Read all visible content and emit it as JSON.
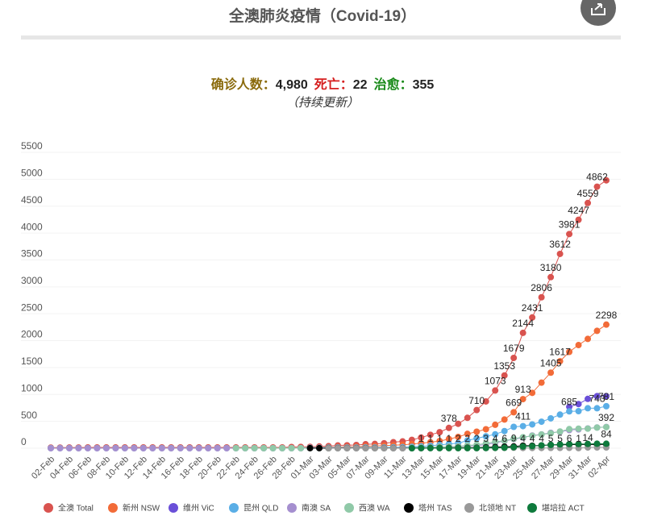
{
  "header": {
    "title": "全澳肺炎疫情（Covid-19）"
  },
  "summary": {
    "confirmed_label": "确诊人数：",
    "confirmed": "4,980",
    "deaths_label": "死亡：",
    "deaths": "22",
    "recovered_label": "治愈：",
    "recovered": "355",
    "note": "（持续更新）"
  },
  "chart_data": {
    "type": "line",
    "categories": [
      "02-Feb",
      null,
      "04-Feb",
      null,
      "06-Feb",
      null,
      "08-Feb",
      null,
      "10-Feb",
      null,
      "12-Feb",
      null,
      "14-Feb",
      null,
      "16-Feb",
      null,
      "18-Feb",
      null,
      "20-Feb",
      null,
      "22-Feb",
      null,
      "24-Feb",
      null,
      "26-Feb",
      null,
      "28-Feb",
      null,
      "01-Mar",
      null,
      "03-Mar",
      null,
      "05-Mar",
      null,
      "07-Mar",
      null,
      "09-Mar",
      null,
      "11-Mar",
      null,
      "13-Mar",
      null,
      "15-Mar",
      null,
      "17-Mar",
      null,
      "19-Mar",
      null,
      "21-Mar",
      null,
      "23-Mar",
      null,
      "25-Mar",
      null,
      "27-Mar",
      null,
      "29-Mar",
      null,
      "31-Mar",
      null,
      "02-Apr"
    ],
    "ylim": [
      0,
      5500
    ],
    "yticks": [
      0,
      500,
      1000,
      1500,
      2000,
      2500,
      3000,
      3500,
      4000,
      4500,
      5000,
      5500
    ],
    "grid": true,
    "legend": "bottom",
    "series": [
      {
        "name": "全澳 Total",
        "color": "#d9534f",
        "values": [
          12,
          12,
          13,
          14,
          15,
          15,
          15,
          15,
          15,
          15,
          15,
          15,
          15,
          15,
          15,
          15,
          15,
          15,
          15,
          15,
          15,
          15,
          15,
          15,
          15,
          15,
          23,
          25,
          26,
          33,
          39,
          52,
          55,
          60,
          74,
          80,
          92,
          112,
          127,
          156,
          198,
          250,
          298,
          378,
          454,
          565,
          710,
          870,
          1073,
          1353,
          1679,
          2144,
          2431,
          2806,
          3180,
          3612,
          3981,
          4247,
          4559,
          4862,
          4980
        ],
        "value_labels": [
          null,
          null,
          null,
          null,
          null,
          null,
          null,
          null,
          null,
          null,
          null,
          null,
          null,
          null,
          null,
          null,
          null,
          null,
          null,
          null,
          null,
          null,
          null,
          null,
          null,
          null,
          null,
          null,
          null,
          null,
          null,
          null,
          null,
          null,
          null,
          null,
          null,
          null,
          null,
          null,
          null,
          null,
          null,
          "378",
          null,
          null,
          "710",
          null,
          "1073",
          "1353",
          "1679",
          "2144",
          "2431",
          "2806",
          "3180",
          "3612",
          "3981",
          "4247",
          "4559",
          "4862",
          null
        ]
      },
      {
        "name": "新州 NSW",
        "color": "#f26b38",
        "values": [
          4,
          4,
          4,
          4,
          4,
          4,
          4,
          4,
          4,
          4,
          4,
          4,
          4,
          4,
          4,
          4,
          4,
          4,
          4,
          4,
          4,
          4,
          4,
          4,
          4,
          4,
          4,
          4,
          6,
          9,
          15,
          22,
          25,
          28,
          38,
          40,
          48,
          55,
          65,
          78,
          92,
          112,
          134,
          171,
          210,
          267,
          307,
          353,
          436,
          533,
          669,
          913,
          1029,
          1219,
          1405,
          1617,
          1791,
          1918,
          2032,
          2182,
          2298
        ],
        "value_labels": [
          null,
          null,
          null,
          null,
          null,
          null,
          null,
          null,
          null,
          null,
          null,
          null,
          null,
          null,
          null,
          null,
          null,
          null,
          null,
          null,
          null,
          null,
          null,
          null,
          null,
          null,
          null,
          null,
          null,
          null,
          null,
          null,
          null,
          null,
          null,
          null,
          null,
          null,
          null,
          null,
          null,
          null,
          null,
          null,
          null,
          null,
          null,
          null,
          null,
          null,
          "669",
          "913",
          null,
          null,
          "1405",
          "1617",
          null,
          null,
          null,
          null,
          "2298"
        ]
      },
      {
        "name": "维州 ViC",
        "color": "#6a4fd8",
        "values": [
          null,
          null,
          null,
          null,
          null,
          null,
          null,
          null,
          null,
          null,
          null,
          null,
          null,
          null,
          null,
          null,
          null,
          null,
          null,
          null,
          null,
          null,
          null,
          null,
          null,
          null,
          null,
          null,
          null,
          null,
          null,
          null,
          null,
          null,
          null,
          null,
          null,
          null,
          null,
          null,
          null,
          null,
          null,
          null,
          null,
          null,
          null,
          null,
          null,
          null,
          null,
          null,
          null,
          null,
          null,
          null,
          769,
          821,
          917,
          968,
          968
        ]
      },
      {
        "name": "昆州 QLD",
        "color": "#5aaee6",
        "values": [
          2,
          2,
          2,
          2,
          2,
          2,
          2,
          2,
          2,
          2,
          2,
          2,
          2,
          2,
          2,
          2,
          2,
          2,
          2,
          2,
          2,
          2,
          2,
          2,
          2,
          2,
          2,
          2,
          9,
          9,
          11,
          13,
          13,
          13,
          15,
          15,
          15,
          18,
          20,
          27,
          35,
          46,
          61,
          78,
          94,
          144,
          184,
          221,
          259,
          319,
          397,
          411,
          443,
          493,
          555,
          625,
          685,
          689,
          743,
          743,
          781
        ],
        "value_labels": [
          null,
          null,
          null,
          null,
          null,
          null,
          null,
          null,
          null,
          null,
          null,
          null,
          null,
          null,
          null,
          null,
          null,
          null,
          null,
          null,
          null,
          null,
          null,
          null,
          null,
          null,
          null,
          null,
          null,
          null,
          null,
          null,
          null,
          null,
          null,
          null,
          null,
          null,
          null,
          null,
          null,
          null,
          null,
          null,
          null,
          null,
          null,
          null,
          null,
          null,
          null,
          "411",
          null,
          null,
          null,
          null,
          "685",
          null,
          null,
          "743",
          "781"
        ]
      },
      {
        "name": "南澳 SA",
        "color": "#a58fcf",
        "values": [
          0,
          0,
          0,
          0,
          0,
          0,
          0,
          0,
          0,
          0,
          0,
          0,
          0,
          0,
          0,
          0,
          0,
          0,
          0,
          0,
          0,
          0,
          0,
          0,
          0,
          0,
          0,
          0,
          3,
          3,
          3,
          4,
          5,
          5,
          5,
          7,
          7,
          7,
          7,
          9,
          16,
          20,
          29,
          30,
          37,
          42,
          50,
          67,
          100,
          134,
          170,
          197,
          236,
          257,
          287,
          305,
          337,
          350,
          367,
          385,
          396
        ]
      },
      {
        "name": "西澳 WA",
        "color": "#90c9a8",
        "values": [
          null,
          null,
          null,
          null,
          null,
          null,
          null,
          null,
          null,
          null,
          null,
          null,
          null,
          null,
          null,
          null,
          null,
          null,
          null,
          null,
          0,
          0,
          0,
          0,
          0,
          0,
          0,
          0,
          1,
          2,
          2,
          2,
          3,
          3,
          3,
          3,
          3,
          4,
          4,
          9,
          14,
          17,
          28,
          31,
          35,
          52,
          64,
          90,
          120,
          140,
          175,
          205,
          231,
          255,
          278,
          311,
          355,
          364,
          364,
          384,
          392
        ],
        "value_labels": [
          null,
          null,
          null,
          null,
          null,
          null,
          null,
          null,
          null,
          null,
          null,
          null,
          null,
          null,
          null,
          null,
          null,
          null,
          null,
          null,
          null,
          null,
          null,
          null,
          null,
          null,
          null,
          null,
          null,
          null,
          null,
          null,
          null,
          null,
          null,
          null,
          null,
          null,
          null,
          null,
          null,
          null,
          null,
          null,
          null,
          null,
          null,
          null,
          null,
          null,
          null,
          null,
          null,
          null,
          null,
          null,
          null,
          null,
          null,
          null,
          "392"
        ]
      },
      {
        "name": "塔州 TAS",
        "color": "#000000",
        "values": [
          null,
          null,
          null,
          null,
          null,
          null,
          null,
          null,
          null,
          null,
          null,
          null,
          null,
          null,
          null,
          null,
          null,
          null,
          null,
          null,
          null,
          null,
          null,
          null,
          null,
          null,
          null,
          null,
          1,
          1,
          1,
          1,
          1,
          1,
          1,
          1,
          1,
          1,
          1,
          1,
          2,
          5,
          6,
          7,
          10,
          10,
          10,
          16,
          22,
          28,
          33,
          47,
          47,
          51,
          62,
          65,
          66,
          69,
          69,
          69,
          72
        ]
      },
      {
        "name": "北领地 NT",
        "color": "#999999",
        "values": [
          null,
          null,
          null,
          null,
          null,
          null,
          null,
          null,
          null,
          null,
          null,
          null,
          null,
          null,
          null,
          null,
          null,
          null,
          null,
          null,
          null,
          null,
          null,
          null,
          null,
          null,
          null,
          null,
          null,
          null,
          0,
          0,
          0,
          0,
          0,
          0,
          0,
          0,
          0,
          0,
          1,
          1,
          1,
          1,
          2,
          2,
          2,
          3,
          4,
          6,
          9,
          4,
          4,
          4,
          5,
          5,
          6,
          1,
          14,
          15,
          15
        ],
        "value_labels": [
          null,
          null,
          null,
          null,
          null,
          null,
          null,
          null,
          null,
          null,
          null,
          null,
          null,
          null,
          null,
          null,
          null,
          null,
          null,
          null,
          null,
          null,
          null,
          null,
          null,
          null,
          null,
          null,
          null,
          null,
          null,
          null,
          null,
          null,
          null,
          null,
          null,
          null,
          null,
          null,
          "1",
          "1",
          "1",
          "1",
          "2",
          "2",
          "2",
          "3",
          "4",
          "6",
          "9",
          "4",
          "4",
          "4",
          "5",
          "5",
          "6",
          "1",
          "14",
          null,
          null
        ]
      },
      {
        "name": "堪培拉 ACT",
        "color": "#0e7a3c",
        "values": [
          null,
          null,
          null,
          null,
          null,
          null,
          null,
          null,
          null,
          null,
          null,
          null,
          null,
          null,
          null,
          null,
          null,
          null,
          null,
          null,
          null,
          null,
          null,
          null,
          null,
          null,
          null,
          null,
          null,
          null,
          null,
          null,
          null,
          null,
          null,
          null,
          null,
          null,
          null,
          0,
          1,
          1,
          1,
          1,
          1,
          2,
          2,
          3,
          6,
          9,
          19,
          32,
          39,
          53,
          62,
          71,
          77,
          78,
          80,
          84,
          84
        ],
        "value_labels": [
          null,
          null,
          null,
          null,
          null,
          null,
          null,
          null,
          null,
          null,
          null,
          null,
          null,
          null,
          null,
          null,
          null,
          null,
          null,
          null,
          null,
          null,
          null,
          null,
          null,
          null,
          null,
          null,
          null,
          null,
          null,
          null,
          null,
          null,
          null,
          null,
          null,
          null,
          null,
          null,
          null,
          null,
          null,
          null,
          null,
          null,
          null,
          null,
          null,
          null,
          null,
          null,
          null,
          null,
          null,
          null,
          null,
          null,
          null,
          null,
          "84"
        ]
      }
    ]
  }
}
